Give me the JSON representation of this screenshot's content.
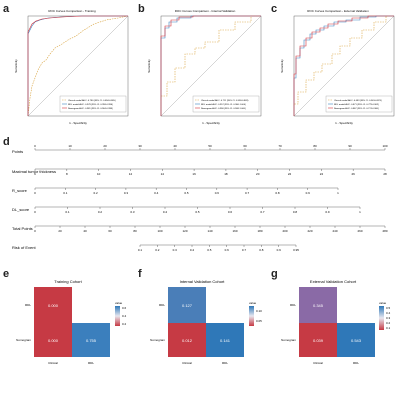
{
  "panel_letters": [
    "a",
    "b",
    "c",
    "d",
    "e",
    "f",
    "g"
  ],
  "roc": [
    {
      "title": "ROC Curves Comparison - Training",
      "xlabel": "1 - Specificity",
      "ylabel": "Sensitivity",
      "legend": [
        "Clinical model AUC: 0.780 (95% CI: 0.694-0.865)",
        "RDL model AUC: 0.978 (95% CI: 0.959-0.996)",
        "Nomogram AUC: 0.981 (95% CI: 0.964-0.998)"
      ]
    },
    {
      "title": "ROC Curves Comparison - Internal Validation",
      "xlabel": "1 - Specificity",
      "ylabel": "Sensitivity",
      "legend": [
        "Clinical model AUC: 0.711 (95% CI: 0.558-0.863)",
        "RDL model AUC: 0.957 (95% CI: 0.906-1.000)",
        "Nomogram AUC: 0.958 (95% CI: 0.908-1.000)"
      ]
    },
    {
      "title": "ROC Curves Comparison - External Validation",
      "xlabel": "1 - Specificity",
      "ylabel": "Sensitivity",
      "legend": [
        "Clinical model AUC: 0.683 (95% CI: 0.543-0.823)",
        "RDL model AUC: 0.871 (95% CI: 0.779-0.962)",
        "Nomogram AUC: 0.867 (95% CI: 0.774-0.960)"
      ]
    }
  ],
  "nomogram": {
    "rows": [
      {
        "label": "Points",
        "ticks": [
          "0",
          "10",
          "20",
          "30",
          "40",
          "50",
          "60",
          "70",
          "80",
          "90",
          "100"
        ]
      },
      {
        "label": "Maximal tumor thickness",
        "ticks": [
          "6",
          "8",
          "10",
          "12",
          "14",
          "16",
          "18",
          "20",
          "22",
          "24",
          "26",
          "28"
        ]
      },
      {
        "label": "R_score",
        "ticks": [
          "0",
          "0.1",
          "0.2",
          "0.3",
          "0.4",
          "0.5",
          "0.6",
          "0.7",
          "0.8",
          "0.9",
          "1"
        ]
      },
      {
        "label": "DL_score",
        "ticks": [
          "0",
          "0.1",
          "0.2",
          "0.3",
          "0.4",
          "0.5",
          "0.6",
          "0.7",
          "0.8",
          "0.9",
          "1"
        ]
      },
      {
        "label": "Total Points",
        "ticks": [
          "0",
          "20",
          "40",
          "60",
          "80",
          "100",
          "120",
          "140",
          "160",
          "180",
          "200",
          "220",
          "240",
          "260",
          "280"
        ]
      },
      {
        "label": "Risk of Event",
        "ticks": [
          "0.1",
          "0.2",
          "0.3",
          "0.4",
          "0.5",
          "0.6",
          "0.7",
          "0.8",
          "0.9",
          "0.95"
        ]
      }
    ]
  },
  "heatmaps": [
    {
      "title": "Training Cohort",
      "row_labels": [
        "RDL",
        "Nomogram"
      ],
      "col_labels": [
        "Clinical",
        "RDL"
      ],
      "cells": {
        "rdl_clinical": "0.000",
        "nomo_clinical": "0.000",
        "nomo_rdl": "0.755"
      },
      "legend_title": "value",
      "legend_ticks": [
        "0.6",
        "0.4",
        "0.2"
      ]
    },
    {
      "title": "Internal Validation Cohort",
      "row_labels": [
        "RDL",
        "Nomogram"
      ],
      "col_labels": [
        "Clinical",
        "RDL"
      ],
      "cells": {
        "rdl_clinical": "0.127",
        "nomo_clinical": "0.012",
        "nomo_rdl": "0.141"
      },
      "legend_title": "value",
      "legend_ticks": [
        "0.10",
        "0.05"
      ]
    },
    {
      "title": "External Validation Cohort",
      "row_labels": [
        "RDL",
        "Nomogram"
      ],
      "col_labels": [
        "Clinical",
        "RDL"
      ],
      "cells": {
        "rdl_clinical": "0.345",
        "nomo_clinical": "0.039",
        "nomo_rdl": "0.543"
      },
      "legend_title": "value",
      "legend_ticks": [
        "0.5",
        "0.4",
        "0.3",
        "0.2",
        "0.1"
      ]
    }
  ],
  "colors": {
    "clinical": "#d9a441",
    "rdl": "#3f83c2",
    "nomogram": "#d6323b",
    "diag": "#999999",
    "heat_high": "#2f78b8",
    "heat_low": "#c63a44"
  }
}
